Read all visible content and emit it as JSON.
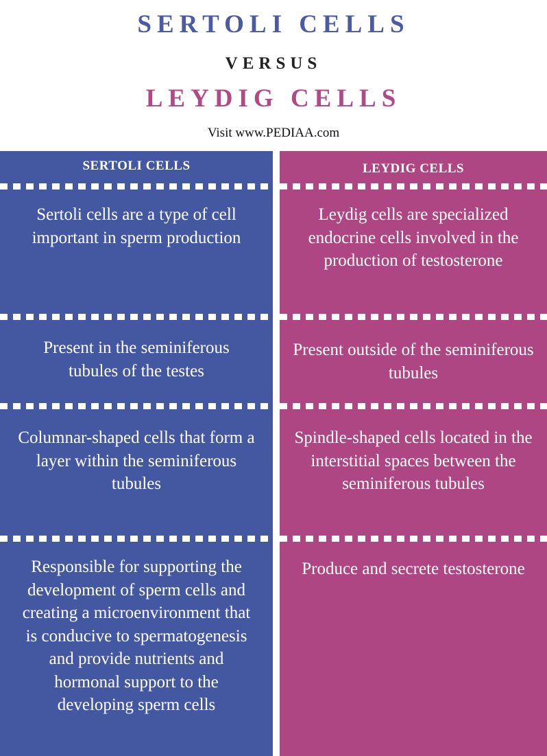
{
  "header": {
    "title_left": "SERTOLI CELLS",
    "versus": "VERSUS",
    "title_right": "LEYDIG CELLS",
    "visit": "Visit www.PEDIAA.com"
  },
  "columns": [
    {
      "heading": "SERTOLI CELLS",
      "color": "#4458a2",
      "rows": [
        "Sertoli cells are a type of cell important in sperm production",
        "Present in the seminiferous tubules of the testes",
        "Columnar-shaped cells that form a layer within the seminiferous tubules",
        "Responsible for supporting the development of sperm cells and creating a microenvironment that is conducive to spermatogenesis and provide nutrients and hormonal support to the developing sperm cells"
      ]
    },
    {
      "heading": "LEYDIG CELLS",
      "color": "#ad4682",
      "rows": [
        "Leydig cells are specialized endocrine cells involved in the production of testosterone",
        "Present outside of the seminiferous tubules",
        "Spindle-shaped cells located in the interstitial spaces between the seminiferous tubules",
        "Produce and secrete testosterone"
      ]
    }
  ]
}
